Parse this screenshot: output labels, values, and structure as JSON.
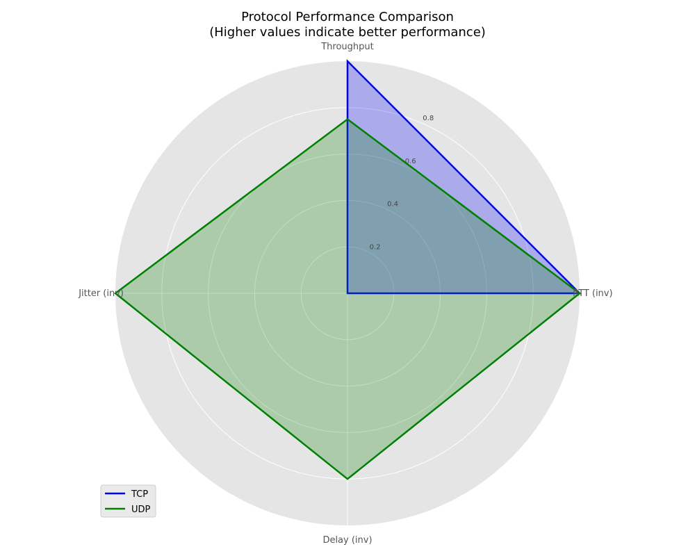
{
  "chart_data": {
    "type": "radar",
    "title": "Protocol Performance Comparison",
    "subtitle": "(Higher values indicate better performance)",
    "axes": [
      "Throughput",
      "RTT (inv)",
      "Delay (inv)",
      "Jitter (inv)"
    ],
    "rlim": [
      0,
      1.0
    ],
    "rticks": [
      0.2,
      0.4,
      0.6,
      0.8
    ],
    "rtick_labels": [
      "0.2",
      "0.4",
      "0.6",
      "0.8"
    ],
    "grid": true,
    "legend_position": "lower-left",
    "series": [
      {
        "name": "TCP",
        "values": [
          1.0,
          1.0,
          0.0,
          0.0
        ],
        "color": "#0000ff",
        "fill": "#0000ff"
      },
      {
        "name": "UDP",
        "values": [
          0.75,
          1.0,
          0.8,
          1.0
        ],
        "color": "#008000",
        "fill": "#008000"
      }
    ]
  },
  "colors": {
    "plot_background": "#e5e5e5",
    "grid": "#ffffff"
  }
}
